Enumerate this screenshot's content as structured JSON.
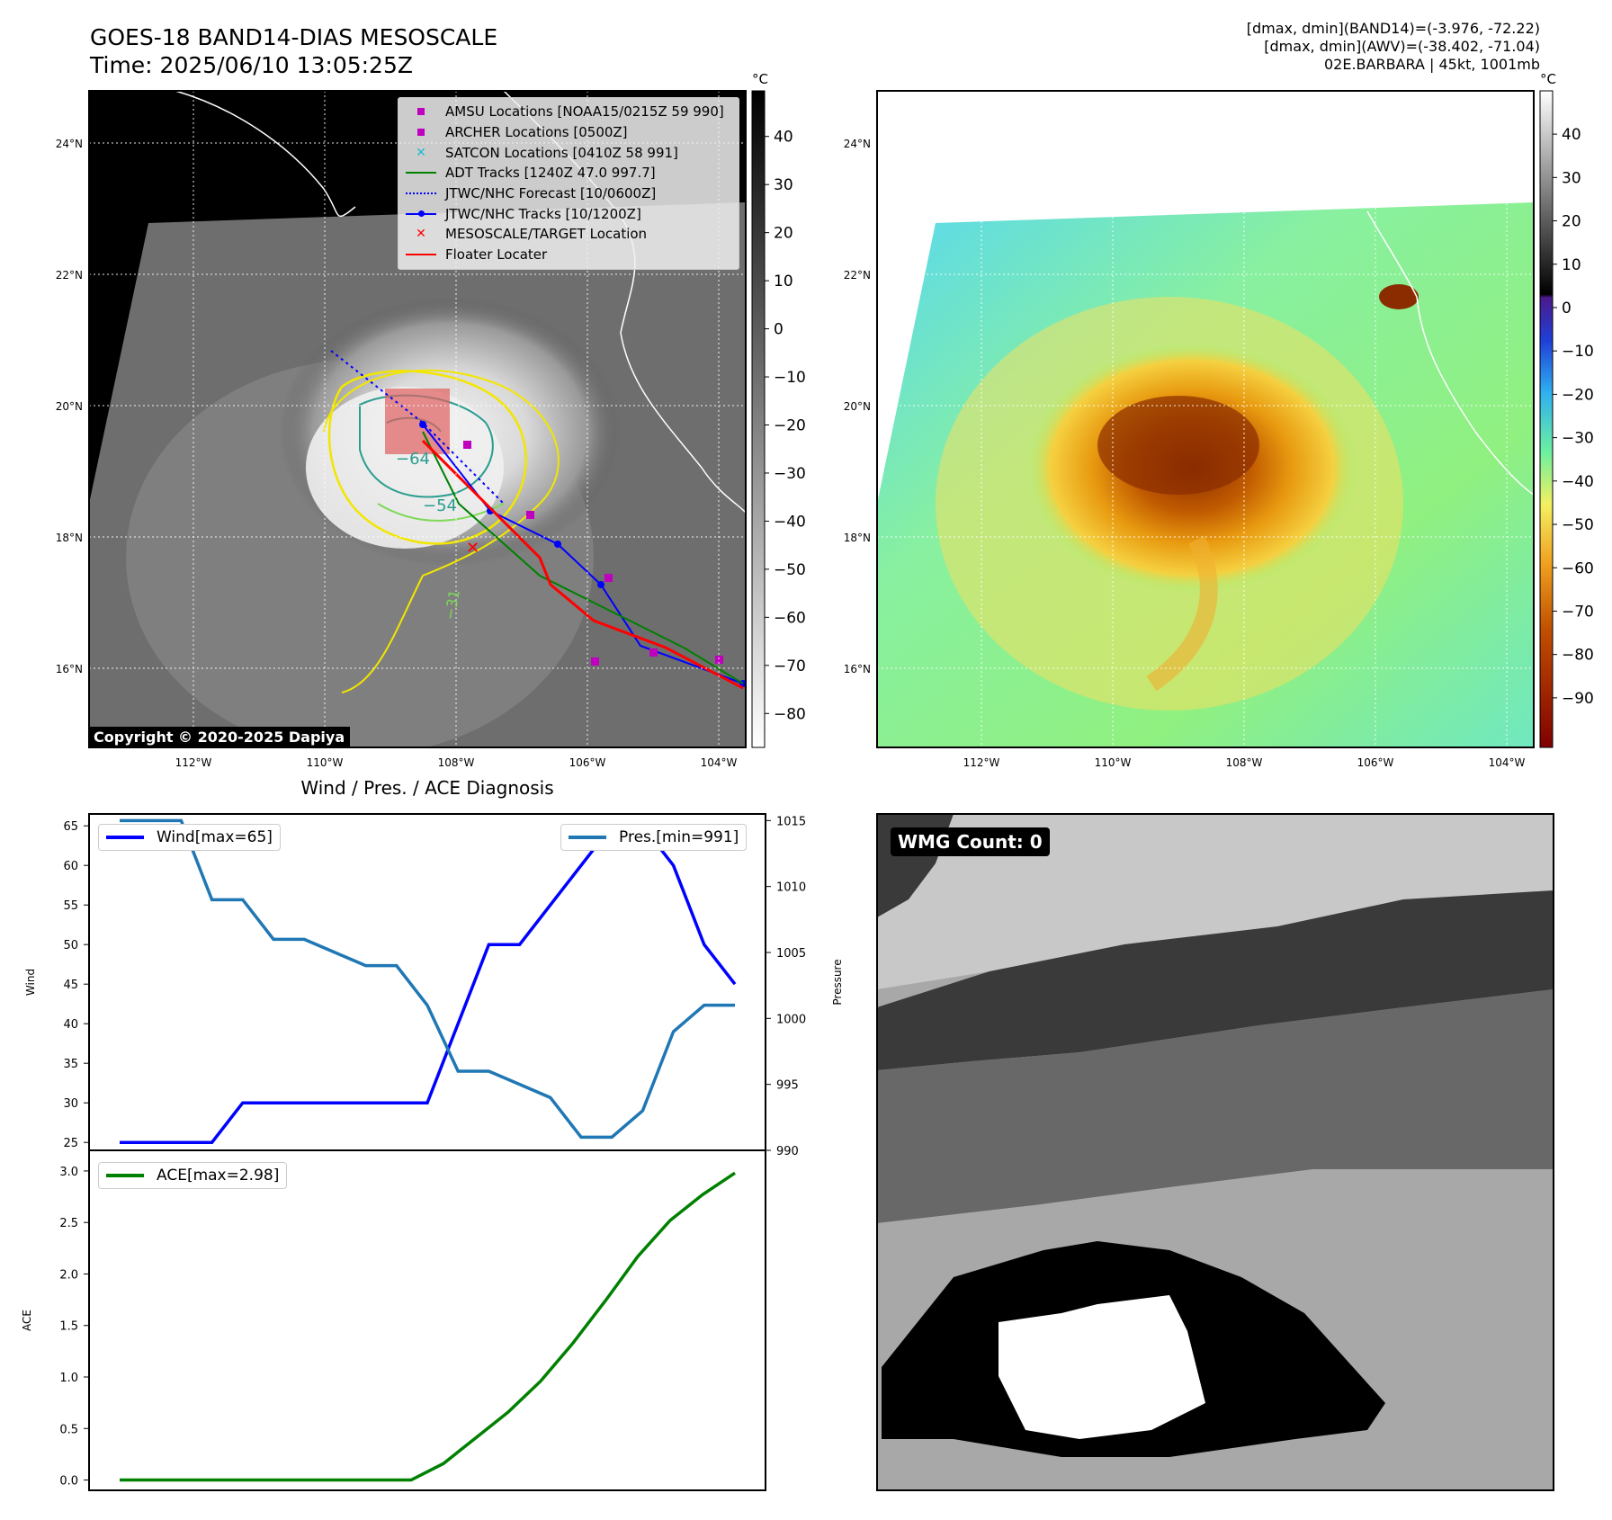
{
  "header": {
    "title_line1": "GOES-18 BAND14-DIAS MESOSCALE",
    "title_line2": "Time: 2025/06/10 13:05:25Z",
    "info_line1": "[dmax, dmin](BAND14)=(-3.976, -72.22)",
    "info_line2": "[dmax, dmin](AWV)=(-38.402, -71.04)",
    "info_line3": "02E.BARBARA | 45kt, 1001mb"
  },
  "map_ir": {
    "lat_labels": [
      "24°N",
      "22°N",
      "20°N",
      "18°N",
      "16°N"
    ],
    "lon_labels": [
      "112°W",
      "110°W",
      "108°W",
      "106°W",
      "104°W"
    ],
    "contour_labels": [
      "−64",
      "−54",
      "−31"
    ],
    "copyright": "Copyright © 2020-2025 Dapiya",
    "colorbar": {
      "unit": "°C",
      "ticks": [
        "40",
        "30",
        "20",
        "10",
        "0",
        "−10",
        "−20",
        "−30",
        "−40",
        "−50",
        "−60",
        "−70",
        "−80"
      ]
    },
    "legend": [
      {
        "label": "AMSU Locations [NOAA15/0215Z 59 990]",
        "symbol": "square",
        "color": "#bf00bf"
      },
      {
        "label": "ARCHER Locations [0500Z]",
        "symbol": "square",
        "color": "#bf00bf"
      },
      {
        "label": "SATCON Locations [0410Z 58 991]",
        "symbol": "x",
        "color": "#17becf"
      },
      {
        "label": "ADT Tracks [1240Z 47.0 997.7]",
        "symbol": "line",
        "color": "#008000"
      },
      {
        "label": "JTWC/NHC Forecast [10/0600Z]",
        "symbol": "dotted",
        "color": "#0000ff"
      },
      {
        "label": "JTWC/NHC Tracks [10/1200Z]",
        "symbol": "line-dot",
        "color": "#0000ff"
      },
      {
        "label": "MESOSCALE/TARGET Location",
        "symbol": "x",
        "color": "#ff0000"
      },
      {
        "label": "Floater Locater",
        "symbol": "line",
        "color": "#ff0000"
      }
    ]
  },
  "map_awv": {
    "lat_labels": [
      "24°N",
      "22°N",
      "20°N",
      "18°N",
      "16°N"
    ],
    "lon_labels": [
      "112°W",
      "110°W",
      "108°W",
      "106°W",
      "104°W"
    ],
    "colorbar": {
      "unit": "°C",
      "ticks": [
        "40",
        "30",
        "20",
        "10",
        "0",
        "−10",
        "−20",
        "−30",
        "−40",
        "−50",
        "−60",
        "−70",
        "−80",
        "−90"
      ]
    }
  },
  "wmg": {
    "label": "WMG Count: 0"
  },
  "chart_data": [
    {
      "type": "line",
      "title": "Wind / Pres. / ACE Diagnosis",
      "ylabel": "Wind",
      "y2label": "Pressure",
      "ylim": [
        24,
        66.5
      ],
      "y2lim": [
        990,
        1015.5
      ],
      "yticks": [
        25,
        30,
        35,
        40,
        45,
        50,
        55,
        60,
        65
      ],
      "y2ticks": [
        990,
        995,
        1000,
        1005,
        1010,
        1015
      ],
      "series": [
        {
          "name": "Wind[max=65]",
          "axis": "left",
          "color": "#0000ff",
          "values": [
            25,
            25,
            25,
            25,
            30,
            30,
            30,
            30,
            30,
            30,
            30,
            40,
            50,
            50,
            55,
            60,
            65,
            65,
            60,
            50,
            45
          ]
        },
        {
          "name": "Pres.[min=991]",
          "axis": "right",
          "color": "#1f77b4",
          "values": [
            1015,
            1015,
            1015,
            1009,
            1009,
            1006,
            1006,
            1005,
            1004,
            1004,
            1001,
            996,
            996,
            995,
            994,
            991,
            991,
            993,
            999,
            1001,
            1001
          ]
        }
      ]
    },
    {
      "type": "line",
      "ylabel": "ACE",
      "ylim": [
        -0.1,
        3.2
      ],
      "yticks": [
        "0.0",
        "0.5",
        "1.0",
        "1.5",
        "2.0",
        "2.5",
        "3.0"
      ],
      "series": [
        {
          "name": "ACE[max=2.98]",
          "color": "#008000",
          "values": [
            0,
            0,
            0,
            0,
            0,
            0,
            0,
            0,
            0,
            0,
            0.16,
            0.41,
            0.66,
            0.96,
            1.33,
            1.74,
            2.17,
            2.52,
            2.77,
            2.98
          ]
        }
      ]
    }
  ]
}
